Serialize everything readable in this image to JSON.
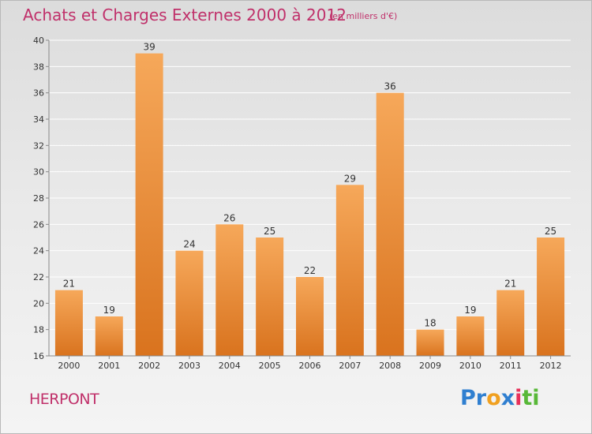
{
  "title": "Achats et Charges Externes 2000 à 2012",
  "unit": "(en milliers d'€)",
  "commune": "HERPONT",
  "logo": {
    "text": "Proxiti",
    "letters": [
      {
        "ch": "P",
        "color": "#2f7fd0"
      },
      {
        "ch": "r",
        "color": "#2f7fd0"
      },
      {
        "ch": "o",
        "color": "#f0a020"
      },
      {
        "ch": "x",
        "color": "#2f7fd0"
      },
      {
        "ch": "i",
        "color": "#e8305a"
      },
      {
        "ch": "t",
        "color": "#58b838"
      },
      {
        "ch": "i",
        "color": "#58b838"
      }
    ]
  },
  "colors": {
    "title": "#c0306a",
    "bar_light": "#f6a85a",
    "bar_dark": "#d9731e",
    "axis": "#888888",
    "grid": "#ffffff"
  },
  "chart_data": {
    "type": "bar",
    "categories": [
      "2000",
      "2001",
      "2002",
      "2003",
      "2004",
      "2005",
      "2006",
      "2007",
      "2008",
      "2009",
      "2010",
      "2011",
      "2012"
    ],
    "values": [
      21,
      19,
      39,
      24,
      26,
      25,
      22,
      29,
      36,
      18,
      19,
      21,
      25
    ],
    "ylim": [
      16,
      40
    ],
    "yticks": [
      16,
      18,
      20,
      22,
      24,
      26,
      28,
      30,
      32,
      34,
      36,
      38,
      40
    ],
    "grid": true,
    "data_labels": true
  }
}
